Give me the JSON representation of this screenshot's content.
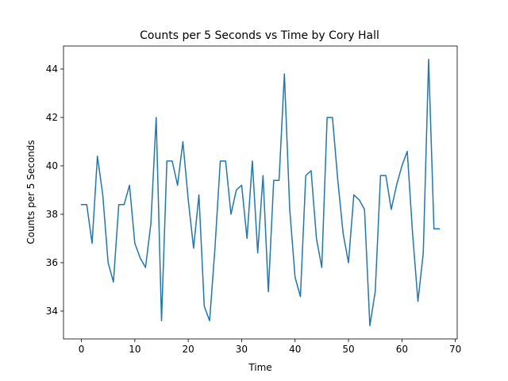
{
  "chart_data": {
    "type": "line",
    "title": "Counts per 5 Seconds vs Time by Cory Hall",
    "xlabel": "Time",
    "ylabel": "Counts per 5 Seconds",
    "xlim": [
      -3.35,
      70.35
    ],
    "ylim": [
      32.85,
      44.95
    ],
    "xticks": [
      0,
      10,
      20,
      30,
      40,
      50,
      60,
      70
    ],
    "yticks": [
      34,
      36,
      38,
      40,
      42,
      44
    ],
    "grid": false,
    "legend": "none",
    "series": [
      {
        "color": "#1f77b4",
        "x": [
          0,
          1,
          2,
          3,
          4,
          5,
          6,
          7,
          8,
          9,
          10,
          11,
          12,
          13,
          14,
          15,
          16,
          17,
          18,
          19,
          20,
          21,
          22,
          23,
          24,
          25,
          26,
          27,
          28,
          29,
          30,
          31,
          32,
          33,
          34,
          35,
          36,
          37,
          38,
          39,
          40,
          41,
          42,
          43,
          44,
          45,
          46,
          47,
          48,
          49,
          50,
          51,
          52,
          53,
          54,
          55,
          56,
          57,
          58,
          59,
          60,
          61,
          62,
          63,
          64,
          65,
          66,
          67
        ],
        "values": [
          38.4,
          38.4,
          36.8,
          40.4,
          38.8,
          36.0,
          35.2,
          38.4,
          38.4,
          39.2,
          36.8,
          36.2,
          35.8,
          37.6,
          42.0,
          33.6,
          40.2,
          40.2,
          39.2,
          41.0,
          38.6,
          36.6,
          38.8,
          34.2,
          33.6,
          36.6,
          40.2,
          40.2,
          38.0,
          39.0,
          39.2,
          37.0,
          40.2,
          36.4,
          39.6,
          34.8,
          39.4,
          39.4,
          43.8,
          38.2,
          35.4,
          34.6,
          39.6,
          39.8,
          37.0,
          35.8,
          42.0,
          42.0,
          39.4,
          37.2,
          36.0,
          38.8,
          38.6,
          38.2,
          33.4,
          34.8,
          39.6,
          39.6,
          38.2,
          39.2,
          40.0,
          40.6,
          37.2,
          34.4,
          36.4,
          44.4,
          37.4,
          37.4
        ]
      }
    ]
  }
}
